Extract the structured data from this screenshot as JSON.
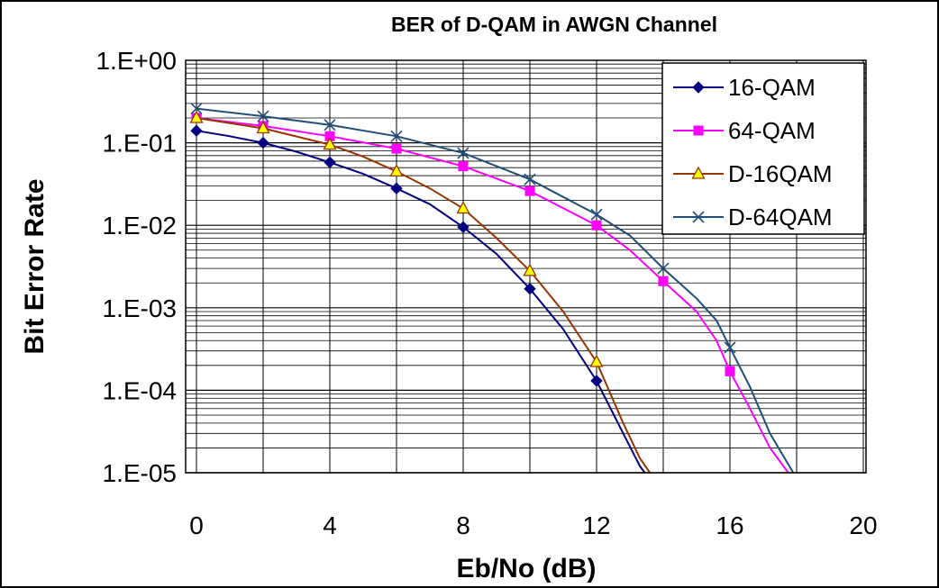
{
  "chart_data": {
    "type": "line",
    "title": "BER of D-QAM in AWGN Channel",
    "xlabel": "Eb/No (dB)",
    "ylabel": "Bit Error Rate",
    "y_scale": "log",
    "xlim": [
      0,
      20
    ],
    "ylim": [
      1e-05,
      1
    ],
    "x_ticks": [
      "0",
      "4",
      "8",
      "12",
      "16",
      "20"
    ],
    "y_ticks": [
      "1.E+00",
      "1.E-01",
      "1.E-02",
      "1.E-03",
      "1.E-04",
      "1.E-05"
    ],
    "grid": true,
    "legend_position": "top-right",
    "series": [
      {
        "name": "16-QAM",
        "color": "#000080",
        "marker": "diamond",
        "marker_fill": "#000080",
        "points": [
          [
            0,
            0.14
          ],
          [
            2,
            0.1
          ],
          [
            4,
            0.058
          ],
          [
            6,
            0.028
          ],
          [
            8,
            0.0095
          ],
          [
            10,
            0.0017
          ],
          [
            12,
            0.00013
          ]
        ],
        "curve": [
          [
            0,
            0.14
          ],
          [
            1,
            0.12
          ],
          [
            2,
            0.1
          ],
          [
            3,
            0.078
          ],
          [
            4,
            0.058
          ],
          [
            5,
            0.042
          ],
          [
            6,
            0.028
          ],
          [
            7,
            0.018
          ],
          [
            8,
            0.0095
          ],
          [
            9,
            0.0045
          ],
          [
            10,
            0.0017
          ],
          [
            11,
            0.00055
          ],
          [
            12,
            0.00013
          ],
          [
            12.8,
            3e-05
          ],
          [
            13.3,
            1.2e-05
          ],
          [
            13.45,
            1e-05
          ]
        ]
      },
      {
        "name": "64-QAM",
        "color": "#ff00ff",
        "marker": "square",
        "marker_fill": "#ff00ff",
        "points": [
          [
            0,
            0.2
          ],
          [
            2,
            0.16
          ],
          [
            4,
            0.12
          ],
          [
            6,
            0.085
          ],
          [
            8,
            0.052
          ],
          [
            10,
            0.026
          ],
          [
            12,
            0.01
          ],
          [
            14,
            0.0021
          ],
          [
            16,
            0.00017
          ]
        ],
        "curve": [
          [
            0,
            0.2
          ],
          [
            2,
            0.16
          ],
          [
            4,
            0.12
          ],
          [
            6,
            0.085
          ],
          [
            8,
            0.052
          ],
          [
            10,
            0.026
          ],
          [
            12,
            0.01
          ],
          [
            13,
            0.005
          ],
          [
            14,
            0.0021
          ],
          [
            15,
            0.0009
          ],
          [
            15.6,
            0.0004
          ],
          [
            16,
            0.00017
          ],
          [
            16.6,
            6e-05
          ],
          [
            17.2,
            2e-05
          ],
          [
            17.75,
            1e-05
          ]
        ]
      },
      {
        "name": "D-16QAM",
        "color": "#993300",
        "marker": "triangle",
        "marker_fill": "#ffff00",
        "points": [
          [
            0,
            0.2
          ],
          [
            2,
            0.15
          ],
          [
            4,
            0.095
          ],
          [
            6,
            0.045
          ],
          [
            8,
            0.016
          ],
          [
            10,
            0.0028
          ],
          [
            12,
            0.00022
          ]
        ],
        "curve": [
          [
            0,
            0.2
          ],
          [
            2,
            0.15
          ],
          [
            4,
            0.095
          ],
          [
            5,
            0.068
          ],
          [
            6,
            0.045
          ],
          [
            7,
            0.028
          ],
          [
            8,
            0.016
          ],
          [
            9,
            0.007
          ],
          [
            10,
            0.0028
          ],
          [
            11,
            0.0009
          ],
          [
            12,
            0.00022
          ],
          [
            12.8,
            4e-05
          ],
          [
            13.3,
            1.5e-05
          ],
          [
            13.6,
            1e-05
          ]
        ]
      },
      {
        "name": "D-64QAM",
        "color": "#1f4e79",
        "marker": "x",
        "marker_fill": "none",
        "points": [
          [
            0,
            0.26
          ],
          [
            2,
            0.21
          ],
          [
            4,
            0.165
          ],
          [
            6,
            0.12
          ],
          [
            8,
            0.075
          ],
          [
            10,
            0.036
          ],
          [
            12,
            0.0135
          ],
          [
            14,
            0.003
          ],
          [
            16,
            0.00033
          ]
        ],
        "curve": [
          [
            0,
            0.26
          ],
          [
            2,
            0.21
          ],
          [
            4,
            0.165
          ],
          [
            6,
            0.12
          ],
          [
            8,
            0.075
          ],
          [
            10,
            0.036
          ],
          [
            12,
            0.0135
          ],
          [
            13,
            0.0075
          ],
          [
            14,
            0.003
          ],
          [
            15,
            0.0013
          ],
          [
            15.6,
            0.0007
          ],
          [
            16,
            0.00033
          ],
          [
            16.6,
            0.00011
          ],
          [
            17.2,
            3e-05
          ],
          [
            17.9,
            1e-05
          ]
        ]
      }
    ]
  }
}
